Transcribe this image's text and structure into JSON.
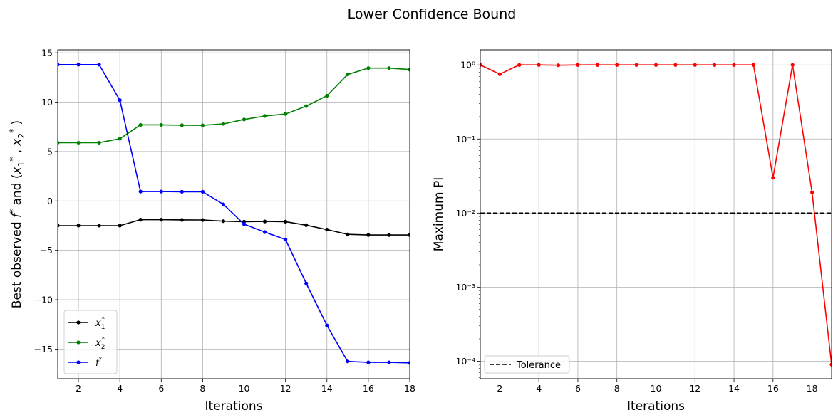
{
  "figure": {
    "suptitle": "Lower Confidence Bound"
  },
  "chart_data": [
    {
      "type": "line",
      "xlabel": "Iterations",
      "ylabel": "Best observed f* and (x1*, x2*)",
      "xlim": [
        1,
        18
      ],
      "ylim": [
        -18,
        15.3
      ],
      "xticks": [
        2,
        4,
        6,
        8,
        10,
        12,
        14,
        16,
        18
      ],
      "yticks": [
        -15,
        -10,
        -5,
        0,
        5,
        10,
        15
      ],
      "ytick_labels": [
        "−15",
        "−10",
        "−5",
        "0",
        "5",
        "10",
        "15"
      ],
      "grid": true,
      "legend_position": "lower-left",
      "x": [
        1,
        2,
        3,
        4,
        5,
        6,
        7,
        8,
        9,
        10,
        11,
        12,
        13,
        14,
        15,
        16,
        17,
        18
      ],
      "series": [
        {
          "name": "x1*",
          "color": "#000000",
          "values": [
            -2.5,
            -2.5,
            -2.5,
            -2.5,
            -1.9,
            -1.9,
            -1.92,
            -1.93,
            -2.05,
            -2.1,
            -2.08,
            -2.1,
            -2.45,
            -2.9,
            -3.38,
            -3.45,
            -3.45,
            -3.45
          ]
        },
        {
          "name": "x2*",
          "color": "#008000",
          "values": [
            5.9,
            5.9,
            5.9,
            6.3,
            7.7,
            7.7,
            7.67,
            7.65,
            7.8,
            8.25,
            8.6,
            8.8,
            9.6,
            10.65,
            12.8,
            13.45,
            13.45,
            13.3
          ]
        },
        {
          "name": "f*",
          "color": "#0000ff",
          "values": [
            13.8,
            13.8,
            13.8,
            10.2,
            0.95,
            0.95,
            0.93,
            0.93,
            -0.35,
            -2.35,
            -3.15,
            -3.9,
            -8.35,
            -12.6,
            -16.25,
            -16.35,
            -16.35,
            -16.4
          ]
        }
      ],
      "legend": {
        "entries": [
          {
            "base": "x",
            "sub": "1",
            "sup": "*",
            "color": "#000000"
          },
          {
            "base": "x",
            "sub": "2",
            "sup": "*",
            "color": "#008000"
          },
          {
            "base": "f",
            "sub": "",
            "sup": "*",
            "color": "#0000ff"
          }
        ]
      }
    },
    {
      "type": "line",
      "xlabel": "Iterations",
      "ylabel": "Maximum PI",
      "xlim": [
        1,
        19
      ],
      "ylim": [
        5.8e-05,
        1.6
      ],
      "yscale": "log",
      "xticks": [
        2,
        4,
        6,
        8,
        10,
        12,
        14,
        16,
        18
      ],
      "yticks": [
        0.0001,
        0.001,
        0.01,
        0.1,
        1
      ],
      "ytick_labels": [
        "10⁻⁴",
        "10⁻³",
        "10⁻²",
        "10⁻¹",
        "10⁰"
      ],
      "grid": true,
      "legend_position": "lower-left",
      "x": [
        1,
        2,
        3,
        4,
        5,
        6,
        7,
        8,
        9,
        10,
        11,
        12,
        13,
        14,
        15,
        16,
        17,
        18,
        19
      ],
      "series": [
        {
          "color": "#ff0000",
          "values": [
            1.0,
            0.75,
            1.0,
            1.0,
            0.99,
            1.0,
            1.0,
            1.0,
            1.0,
            1.0,
            1.0,
            1.0,
            1.0,
            1.0,
            1.0,
            0.03,
            1.0,
            0.019,
            9e-05
          ]
        }
      ],
      "hlines": [
        {
          "y": 0.01,
          "color": "#000000",
          "style": "dashed",
          "name": "Tolerance"
        }
      ],
      "legend": {
        "entries": [
          {
            "label": "Tolerance",
            "color": "#000000",
            "dashed": true
          }
        ]
      }
    }
  ]
}
